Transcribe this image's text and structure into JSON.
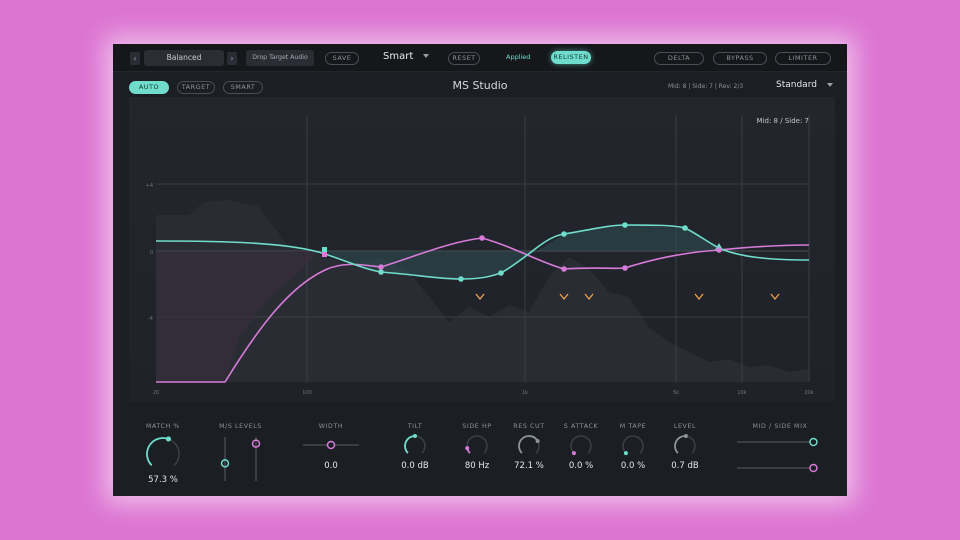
{
  "topbar": {
    "prev_arrow": "‹",
    "preset_name": "Balanced",
    "next_arrow": "›",
    "drop_target": "Drop Target Audio",
    "save_label": "SAVE",
    "mode_select": "Smart",
    "reset_label": "RESET",
    "applied_label": "Applied",
    "relisten_label": "RELISTEN",
    "delta_label": "DELTA",
    "bypass_label": "BYPASS",
    "limiter_label": "LIMITER"
  },
  "mode_tabs": [
    {
      "label": "AUTO",
      "active": true
    },
    {
      "label": "TARGET",
      "active": false
    },
    {
      "label": "SMART",
      "active": false
    }
  ],
  "header": {
    "title": "MS Studio",
    "info": "Mid: 8 | Side: 7 | Rev: 2/3",
    "view_select": "Standard"
  },
  "graph": {
    "overlay_label": "Mid: 8 / Side: 7",
    "y_labels": [
      "+4",
      "0",
      "-4"
    ],
    "x_labels": [
      "20",
      "100",
      "1k",
      "5k",
      "10k",
      "20k"
    ],
    "colors": {
      "mid": "#6fdccc",
      "side": "#d77bd8",
      "marker": "#f0a24a"
    }
  },
  "controls": {
    "match": {
      "label": "MATCH %",
      "value": "57.3 %",
      "fraction": 0.573
    },
    "ms_levels": {
      "label": "M/S LEVELS",
      "mid_fraction": 0.4,
      "side_fraction": 0.85
    },
    "width": {
      "label": "WIDTH",
      "value": "0.0",
      "fraction": 0.5
    },
    "tilt": {
      "label": "TILT",
      "value": "0.0 dB",
      "fraction": 0.5
    },
    "side_hp": {
      "label": "SIDE HP",
      "value": "80 Hz",
      "fraction": 0.12
    },
    "res_cut": {
      "label": "RES CUT",
      "value": "72.1 %",
      "fraction": 0.721
    },
    "s_attack": {
      "label": "S ATTACK",
      "value": "0.0 %",
      "fraction": 0
    },
    "m_tape": {
      "label": "M TAPE",
      "value": "0.0 %",
      "fraction": 0
    },
    "level": {
      "label": "LEVEL",
      "value": "0.7 dB",
      "fraction": 0.52
    },
    "mid_side_mix": {
      "label": "MID / SIDE MIX",
      "mid_fraction": 0.98,
      "side_fraction": 0.98
    }
  }
}
